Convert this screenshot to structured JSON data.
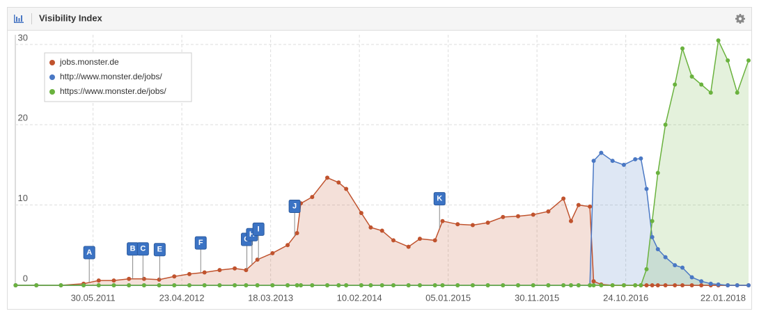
{
  "header": {
    "title": "Visibility Index"
  },
  "chart_data": {
    "type": "line",
    "x": [
      "2010-08-16",
      "2010-11-01",
      "2011-01-31",
      "2011-04-25",
      "2011-06-20",
      "2011-08-15",
      "2011-10-10",
      "2011-12-05",
      "2012-01-30",
      "2012-03-26",
      "2012-05-21",
      "2012-07-16",
      "2012-09-10",
      "2012-11-05",
      "2012-12-17",
      "2013-01-28",
      "2013-03-25",
      "2013-05-20",
      "2013-06-24",
      "2013-07-08",
      "2013-08-19",
      "2013-10-14",
      "2013-11-25",
      "2013-12-23",
      "2014-02-17",
      "2014-03-24",
      "2014-05-05",
      "2014-06-16",
      "2014-08-11",
      "2014-09-22",
      "2014-11-17",
      "2014-12-15",
      "2015-02-09",
      "2015-04-06",
      "2015-06-01",
      "2015-07-27",
      "2015-09-21",
      "2015-11-16",
      "2016-01-11",
      "2016-03-07",
      "2016-04-04",
      "2016-05-02",
      "2016-06-13",
      "2016-06-27",
      "2016-07-25",
      "2016-09-05",
      "2016-10-17",
      "2016-11-28",
      "2016-12-19",
      "2017-01-09",
      "2017-01-30",
      "2017-02-20",
      "2017-03-20",
      "2017-04-24",
      "2017-05-22",
      "2017-06-26",
      "2017-07-31",
      "2017-09-04",
      "2017-10-02",
      "2017-11-06",
      "2017-12-11",
      "2018-01-22"
    ],
    "series": [
      {
        "name": "jobs.monster.de",
        "color": "#c0532e",
        "values": [
          0,
          0,
          0,
          0.2,
          0.6,
          0.6,
          0.8,
          0.8,
          0.7,
          1.1,
          1.4,
          1.6,
          1.9,
          2.1,
          1.9,
          3.2,
          4.0,
          5.0,
          6.5,
          10.2,
          11,
          13.4,
          12.8,
          12,
          9,
          7.2,
          6.8,
          5.6,
          4.8,
          5.8,
          5.6,
          8,
          7.6,
          7.5,
          7.8,
          8.5,
          8.6,
          8.8,
          9.2,
          10.8,
          8,
          10,
          9.8,
          0.5,
          0.1,
          0,
          0,
          0,
          0,
          0,
          0,
          0,
          0,
          0,
          0,
          0,
          0,
          0,
          0,
          0,
          0,
          0
        ]
      },
      {
        "name": "http://www.monster.de/jobs/",
        "color": "#4a78c4",
        "values": [
          0,
          0,
          0,
          0,
          0,
          0,
          0,
          0,
          0,
          0,
          0,
          0,
          0,
          0,
          0,
          0,
          0,
          0,
          0,
          0,
          0,
          0,
          0,
          0,
          0,
          0,
          0,
          0,
          0,
          0,
          0,
          0,
          0,
          0,
          0,
          0,
          0,
          0,
          0,
          0,
          0,
          0,
          0,
          15.5,
          16.5,
          15.5,
          15,
          15.7,
          15.8,
          12,
          6,
          4.5,
          3.5,
          2.5,
          2.2,
          1,
          0.5,
          0.2,
          0.1,
          0,
          0,
          0
        ]
      },
      {
        "name": "https://www.monster.de/jobs/",
        "color": "#6ab23e",
        "values": [
          0,
          0,
          0,
          0,
          0,
          0,
          0,
          0,
          0,
          0,
          0,
          0,
          0,
          0,
          0,
          0,
          0,
          0,
          0,
          0,
          0,
          0,
          0,
          0,
          0,
          0,
          0,
          0,
          0,
          0,
          0,
          0,
          0,
          0,
          0,
          0,
          0,
          0,
          0,
          0,
          0,
          0,
          0,
          0,
          0,
          0,
          0,
          0,
          0,
          2,
          8,
          14,
          20,
          25,
          29.5,
          26,
          25,
          24,
          30.5,
          28,
          24,
          28
        ]
      }
    ],
    "xlim": [
      "2010-08-15",
      "2018-01-22"
    ],
    "xticks": [
      {
        "value": "2011-05-30",
        "label": "30.05.2011"
      },
      {
        "value": "2012-04-23",
        "label": "23.04.2012"
      },
      {
        "value": "2013-03-18",
        "label": "18.03.2013"
      },
      {
        "value": "2014-02-10",
        "label": "10.02.2014"
      },
      {
        "value": "2015-01-05",
        "label": "05.01.2015"
      },
      {
        "value": "2015-11-30",
        "label": "30.11.2015"
      },
      {
        "value": "2016-10-24",
        "label": "24.10.2016"
      },
      {
        "value": "2018-01-22",
        "label": "22.01.2018"
      }
    ],
    "ylim": [
      0,
      31.2
    ],
    "yticks": [
      0,
      10,
      20,
      30
    ],
    "grid": true,
    "legend": "upper-left",
    "annotations": [
      {
        "label": "A",
        "x": "2011-05-16"
      },
      {
        "label": "B",
        "x": "2011-10-24"
      },
      {
        "label": "C",
        "x": "2011-12-01"
      },
      {
        "label": "E",
        "x": "2012-02-01"
      },
      {
        "label": "F",
        "x": "2012-07-02"
      },
      {
        "label": "G",
        "x": "2012-12-20"
      },
      {
        "label": "H",
        "x": "2013-01-08"
      },
      {
        "label": "I",
        "x": "2013-02-01"
      },
      {
        "label": "J",
        "x": "2013-06-15"
      },
      {
        "label": "K",
        "x": "2014-12-04"
      }
    ]
  }
}
